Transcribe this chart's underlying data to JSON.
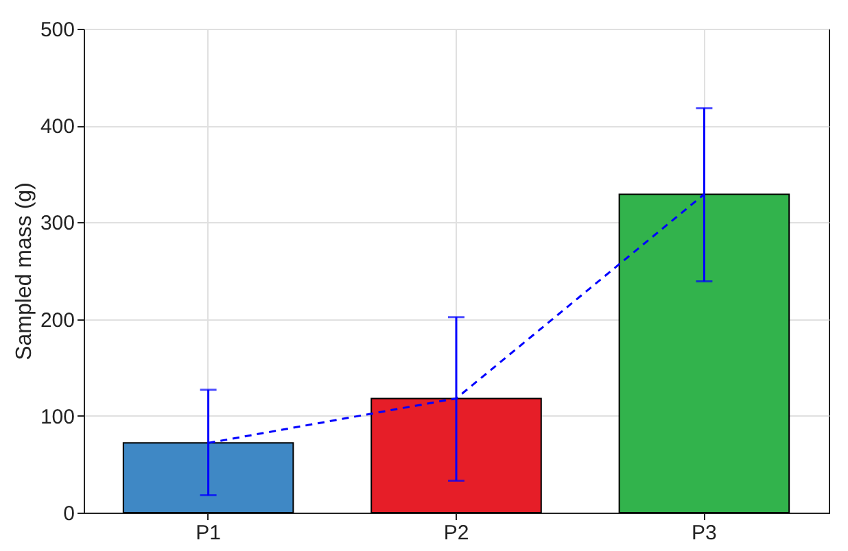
{
  "chart_data": {
    "type": "bar",
    "ylabel": "Sampled mass (g)",
    "categories": [
      "P1",
      "P2",
      "P3"
    ],
    "ylim": [
      0,
      500
    ],
    "yticks": [
      0,
      100,
      200,
      300,
      400,
      500
    ],
    "grid": true,
    "series": [
      {
        "values": [
          72,
          118,
          329
        ],
        "colors": [
          "#3f88c5",
          "#e61e28",
          "#32b34c"
        ]
      },
      {
        "type": "line",
        "values": [
          72,
          118,
          329
        ],
        "color": "#0000ff",
        "line_style": "dashed",
        "marker": "none",
        "errors": [
          [
            18,
            127
          ],
          [
            33,
            202
          ],
          [
            239,
            418
          ]
        ]
      }
    ]
  }
}
